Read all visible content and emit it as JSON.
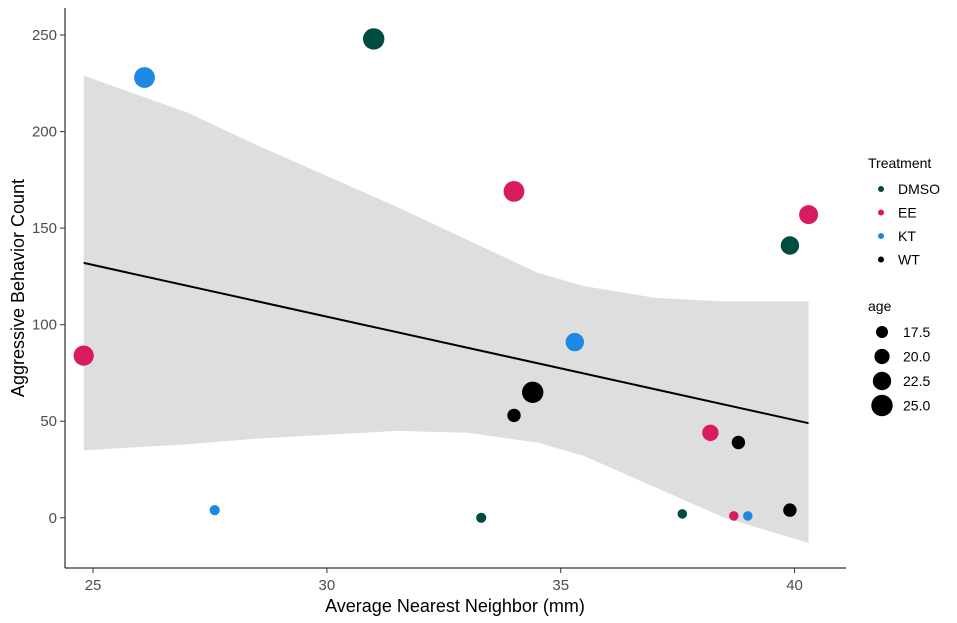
{
  "chart_data": {
    "type": "scatter",
    "xlabel": "Average Nearest Neighbor (mm)",
    "ylabel": "Aggressive Behavior Count",
    "xlim": [
      24.4,
      41.1
    ],
    "ylim": [
      -26,
      264
    ],
    "x_ticks": [
      25,
      30,
      35,
      40
    ],
    "y_ticks": [
      0,
      50,
      100,
      150,
      200,
      250
    ],
    "grid": false,
    "legend_position": "right",
    "legends": {
      "treatment": {
        "title": "Treatment",
        "entries": [
          {
            "label": "DMSO",
            "color": "#004c40"
          },
          {
            "label": "EE",
            "color": "#d81b60"
          },
          {
            "label": "KT",
            "color": "#1e88e5"
          },
          {
            "label": "WT",
            "color": "#000000"
          }
        ]
      },
      "age": {
        "title": "age",
        "entries": [
          {
            "label": "17.5",
            "value": 17.5
          },
          {
            "label": "20.0",
            "value": 20.0
          },
          {
            "label": "22.5",
            "value": 22.5
          },
          {
            "label": "25.0",
            "value": 25.0
          }
        ]
      }
    },
    "points": [
      {
        "x": 24.8,
        "y": 84,
        "treatment": "EE",
        "age": 24.0
      },
      {
        "x": 26.1,
        "y": 228,
        "treatment": "KT",
        "age": 24.5
      },
      {
        "x": 27.6,
        "y": 4,
        "treatment": "KT",
        "age": 16.0
      },
      {
        "x": 31.0,
        "y": 248,
        "treatment": "DMSO",
        "age": 25.0
      },
      {
        "x": 33.3,
        "y": 0,
        "treatment": "DMSO",
        "age": 16.0
      },
      {
        "x": 34.0,
        "y": 169,
        "treatment": "EE",
        "age": 24.5
      },
      {
        "x": 34.0,
        "y": 53,
        "treatment": "WT",
        "age": 18.5
      },
      {
        "x": 34.4,
        "y": 65,
        "treatment": "WT",
        "age": 25.0
      },
      {
        "x": 35.3,
        "y": 91,
        "treatment": "KT",
        "age": 22.5
      },
      {
        "x": 37.6,
        "y": 2,
        "treatment": "DMSO",
        "age": 15.5
      },
      {
        "x": 38.2,
        "y": 44,
        "treatment": "EE",
        "age": 21.0
      },
      {
        "x": 38.7,
        "y": 1,
        "treatment": "EE",
        "age": 15.5
      },
      {
        "x": 38.8,
        "y": 39,
        "treatment": "WT",
        "age": 18.5
      },
      {
        "x": 39.0,
        "y": 1,
        "treatment": "KT",
        "age": 15.5
      },
      {
        "x": 39.9,
        "y": 4,
        "treatment": "WT",
        "age": 18.5
      },
      {
        "x": 39.9,
        "y": 141,
        "treatment": "DMSO",
        "age": 22.5
      },
      {
        "x": 40.3,
        "y": 157,
        "treatment": "EE",
        "age": 23.0
      }
    ],
    "trend_line": {
      "x": [
        24.8,
        40.3
      ],
      "y": [
        132,
        49
      ]
    },
    "confidence_band": [
      {
        "x": 24.8,
        "upper": 229,
        "lower": 35
      },
      {
        "x": 27.0,
        "upper": 210,
        "lower": 38
      },
      {
        "x": 28.5,
        "upper": 193,
        "lower": 41
      },
      {
        "x": 30.0,
        "upper": 177,
        "lower": 43
      },
      {
        "x": 31.5,
        "upper": 161,
        "lower": 45
      },
      {
        "x": 33.0,
        "upper": 144,
        "lower": 44
      },
      {
        "x": 34.5,
        "upper": 127,
        "lower": 39
      },
      {
        "x": 35.5,
        "upper": 120,
        "lower": 32
      },
      {
        "x": 37.0,
        "upper": 114,
        "lower": 16
      },
      {
        "x": 38.5,
        "upper": 112,
        "lower": 0
      },
      {
        "x": 40.3,
        "upper": 112,
        "lower": -13
      }
    ],
    "colors": {
      "band": "#dedede",
      "line": "#000000",
      "axis": "#000000",
      "tick_text": "#4d4d4d"
    }
  }
}
